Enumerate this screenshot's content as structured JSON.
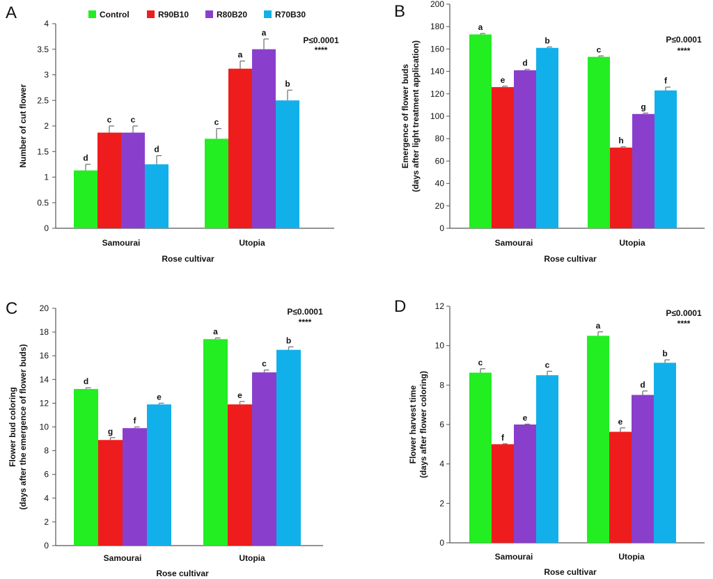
{
  "legend": [
    {
      "name": "Control",
      "color": "#22ee22"
    },
    {
      "name": "R90B10",
      "color": "#ee1c1c"
    },
    {
      "name": "R80B20",
      "color": "#8a3fcc"
    },
    {
      "name": "R70B30",
      "color": "#12b0ea"
    }
  ],
  "chart_data": [
    {
      "panel": "A",
      "type": "bar",
      "categories": [
        "Samourai",
        "Utopia"
      ],
      "series": [
        {
          "name": "Control",
          "values": [
            1.13,
            1.75
          ],
          "errors": [
            0.12,
            0.2
          ],
          "letters": [
            "d",
            "c"
          ]
        },
        {
          "name": "R90B10",
          "values": [
            1.87,
            3.12
          ],
          "errors": [
            0.13,
            0.15
          ],
          "letters": [
            "c",
            "a"
          ]
        },
        {
          "name": "R80B20",
          "values": [
            1.87,
            3.5
          ],
          "errors": [
            0.13,
            0.2
          ],
          "letters": [
            "c",
            "a"
          ]
        },
        {
          "name": "R70B30",
          "values": [
            1.25,
            2.5
          ],
          "errors": [
            0.17,
            0.2
          ],
          "letters": [
            "d",
            "b"
          ]
        }
      ],
      "ylim": [
        0,
        4
      ],
      "yticks": [
        "0",
        "0.5",
        "1",
        "1.5",
        "2",
        "2.5",
        "3",
        "3.5",
        "4"
      ],
      "ylabel": [
        "Number of cut flower"
      ],
      "xlabel": "Rose cultivar",
      "pvalue": "P≤0.0001",
      "stars": "****"
    },
    {
      "panel": "B",
      "type": "bar",
      "categories": [
        "Samourai",
        "Utopia"
      ],
      "series": [
        {
          "name": "Control",
          "values": [
            173,
            153
          ],
          "errors": [
            0.8,
            0.8
          ],
          "letters": [
            "a",
            "c"
          ]
        },
        {
          "name": "R90B10",
          "values": [
            126,
            72
          ],
          "errors": [
            0.8,
            0.8
          ],
          "letters": [
            "e",
            "h"
          ]
        },
        {
          "name": "R80B20",
          "values": [
            141,
            102
          ],
          "errors": [
            0.8,
            0.8
          ],
          "letters": [
            "d",
            "g"
          ]
        },
        {
          "name": "R70B30",
          "values": [
            161,
            123
          ],
          "errors": [
            0.8,
            3
          ],
          "letters": [
            "b",
            "f"
          ]
        }
      ],
      "ylim": [
        0,
        200
      ],
      "yticks": [
        "0",
        "20",
        "40",
        "60",
        "80",
        "100",
        "120",
        "140",
        "160",
        "180",
        "200"
      ],
      "ylabel": [
        "Emergence of flower buds",
        "(days after light treatment application)"
      ],
      "xlabel": "Rose cultivar",
      "pvalue": "P≤0.0001",
      "stars": "****"
    },
    {
      "panel": "C",
      "type": "bar",
      "categories": [
        "Samourai",
        "Utopia"
      ],
      "series": [
        {
          "name": "Control",
          "values": [
            13.2,
            17.4
          ],
          "errors": [
            0.1,
            0.1
          ],
          "letters": [
            "d",
            "a"
          ]
        },
        {
          "name": "R90B10",
          "values": [
            8.9,
            11.9
          ],
          "errors": [
            0.2,
            0.25
          ],
          "letters": [
            "g",
            "e"
          ]
        },
        {
          "name": "R80B20",
          "values": [
            9.9,
            14.6
          ],
          "errors": [
            0.1,
            0.2
          ],
          "letters": [
            "f",
            "c"
          ]
        },
        {
          "name": "R70B30",
          "values": [
            11.9,
            16.5
          ],
          "errors": [
            0.1,
            0.25
          ],
          "letters": [
            "e",
            "b"
          ]
        }
      ],
      "ylim": [
        0,
        20
      ],
      "yticks": [
        "0",
        "2",
        "4",
        "6",
        "8",
        "10",
        "12",
        "14",
        "16",
        "18",
        "20"
      ],
      "ylabel": [
        "Flower bud coloring",
        "(days after the emergence of flower buds)"
      ],
      "xlabel": "Rose cultivar",
      "pvalue": "P≤0.0001",
      "stars": "****"
    },
    {
      "panel": "D",
      "type": "bar",
      "categories": [
        "Samourai",
        "Utopia"
      ],
      "series": [
        {
          "name": "Control",
          "values": [
            8.63,
            10.5
          ],
          "errors": [
            0.2,
            0.2
          ],
          "letters": [
            "c",
            "a"
          ]
        },
        {
          "name": "R90B10",
          "values": [
            5.0,
            5.63
          ],
          "errors": [
            0.02,
            0.2
          ],
          "letters": [
            "f",
            "e"
          ]
        },
        {
          "name": "R80B20",
          "values": [
            6.0,
            7.5
          ],
          "errors": [
            0.02,
            0.2
          ],
          "letters": [
            "e",
            "d"
          ]
        },
        {
          "name": "R70B30",
          "values": [
            8.5,
            9.13
          ],
          "errors": [
            0.2,
            0.15
          ],
          "letters": [
            "c",
            "b"
          ]
        }
      ],
      "ylim": [
        0,
        12
      ],
      "yticks": [
        "0",
        "2",
        "4",
        "6",
        "8",
        "10",
        "12"
      ],
      "ylabel": [
        "Flower harvest time",
        "(days after flower coloring)"
      ],
      "xlabel": "Rose cultivar",
      "pvalue": "P≤0.0001",
      "stars": "****"
    }
  ]
}
